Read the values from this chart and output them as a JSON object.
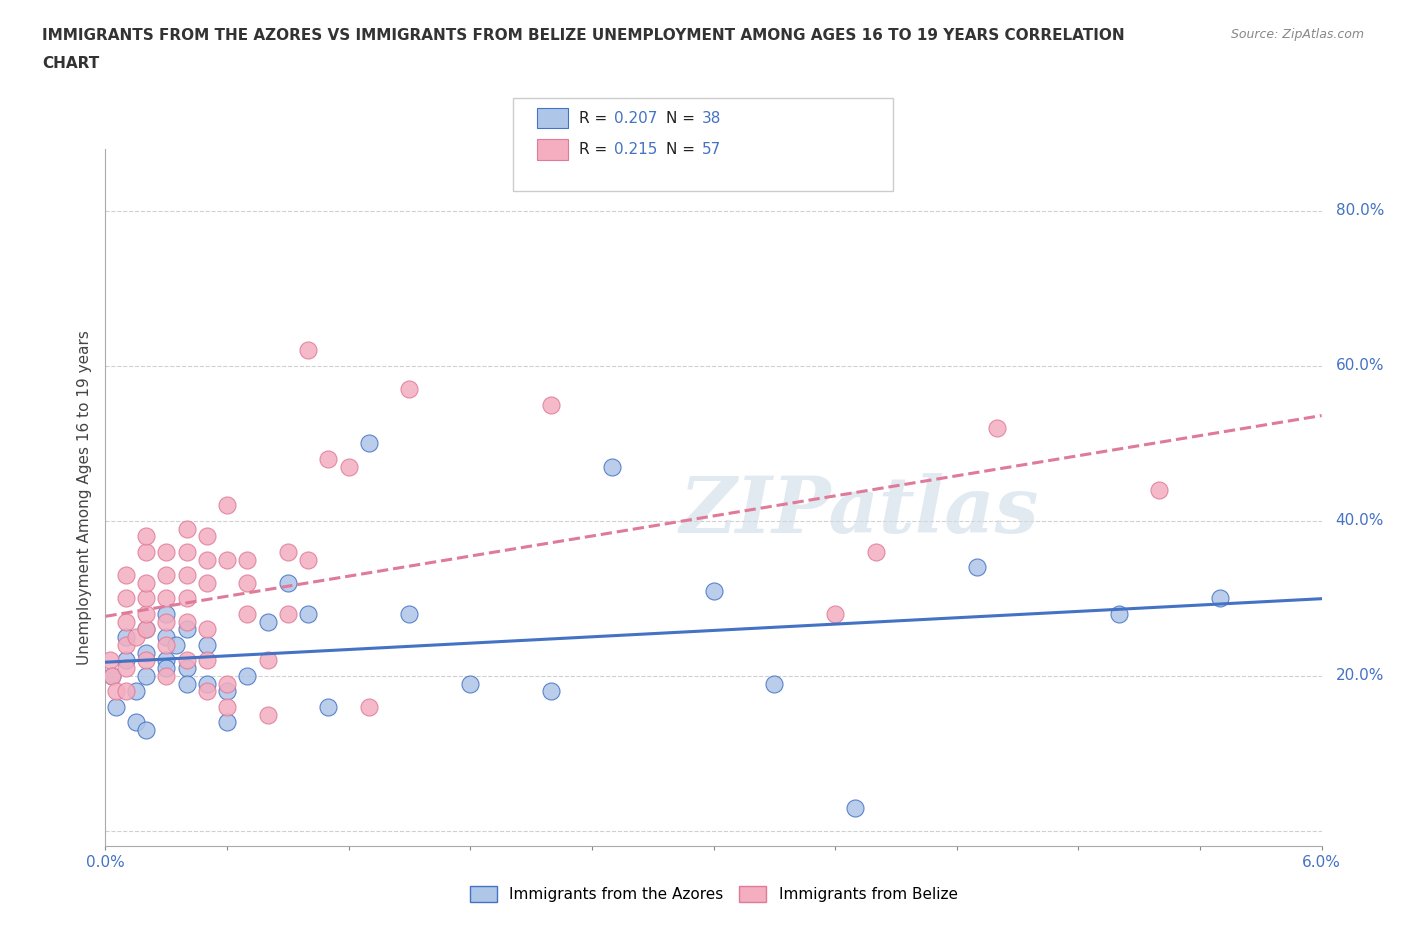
{
  "title_line1": "IMMIGRANTS FROM THE AZORES VS IMMIGRANTS FROM BELIZE UNEMPLOYMENT AMONG AGES 16 TO 19 YEARS CORRELATION",
  "title_line2": "CHART",
  "source": "Source: ZipAtlas.com",
  "ylabel": "Unemployment Among Ages 16 to 19 years",
  "xmin": 0.0,
  "xmax": 0.06,
  "ymin": -0.02,
  "ymax": 0.88,
  "azores_color": "#aec6e8",
  "belize_color": "#f4aec0",
  "trendline_azores_color": "#4472c4",
  "trendline_belize_color": "#e07a99",
  "legend_R_azores": "0.207",
  "legend_N_azores": "38",
  "legend_R_belize": "0.215",
  "legend_N_belize": "57",
  "azores_x": [
    0.0003,
    0.0005,
    0.001,
    0.001,
    0.0015,
    0.0015,
    0.002,
    0.002,
    0.002,
    0.002,
    0.003,
    0.003,
    0.003,
    0.003,
    0.0035,
    0.004,
    0.004,
    0.004,
    0.005,
    0.005,
    0.006,
    0.006,
    0.007,
    0.008,
    0.009,
    0.01,
    0.011,
    0.013,
    0.015,
    0.018,
    0.022,
    0.025,
    0.03,
    0.033,
    0.037,
    0.043,
    0.05,
    0.055
  ],
  "azores_y": [
    0.2,
    0.16,
    0.22,
    0.25,
    0.14,
    0.18,
    0.2,
    0.23,
    0.26,
    0.13,
    0.22,
    0.25,
    0.28,
    0.21,
    0.24,
    0.21,
    0.26,
    0.19,
    0.19,
    0.24,
    0.14,
    0.18,
    0.2,
    0.27,
    0.32,
    0.28,
    0.16,
    0.5,
    0.28,
    0.19,
    0.18,
    0.47,
    0.31,
    0.19,
    0.03,
    0.34,
    0.28,
    0.3
  ],
  "belize_x": [
    0.0002,
    0.0003,
    0.0005,
    0.001,
    0.001,
    0.001,
    0.001,
    0.001,
    0.001,
    0.0015,
    0.002,
    0.002,
    0.002,
    0.002,
    0.002,
    0.002,
    0.002,
    0.003,
    0.003,
    0.003,
    0.003,
    0.003,
    0.003,
    0.004,
    0.004,
    0.004,
    0.004,
    0.004,
    0.004,
    0.005,
    0.005,
    0.005,
    0.005,
    0.005,
    0.005,
    0.006,
    0.006,
    0.006,
    0.006,
    0.007,
    0.007,
    0.007,
    0.008,
    0.008,
    0.009,
    0.009,
    0.01,
    0.01,
    0.011,
    0.012,
    0.013,
    0.015,
    0.022,
    0.036,
    0.038,
    0.044,
    0.052
  ],
  "belize_y": [
    0.22,
    0.2,
    0.18,
    0.21,
    0.24,
    0.27,
    0.3,
    0.33,
    0.18,
    0.25,
    0.22,
    0.26,
    0.28,
    0.3,
    0.32,
    0.36,
    0.38,
    0.2,
    0.24,
    0.27,
    0.3,
    0.33,
    0.36,
    0.22,
    0.27,
    0.3,
    0.33,
    0.36,
    0.39,
    0.18,
    0.22,
    0.26,
    0.32,
    0.35,
    0.38,
    0.16,
    0.19,
    0.35,
    0.42,
    0.28,
    0.32,
    0.35,
    0.15,
    0.22,
    0.28,
    0.36,
    0.35,
    0.62,
    0.48,
    0.47,
    0.16,
    0.57,
    0.55,
    0.28,
    0.36,
    0.52,
    0.44
  ],
  "watermark": "ZIPatlas",
  "background_color": "#ffffff",
  "grid_color": "#d0d0d0"
}
